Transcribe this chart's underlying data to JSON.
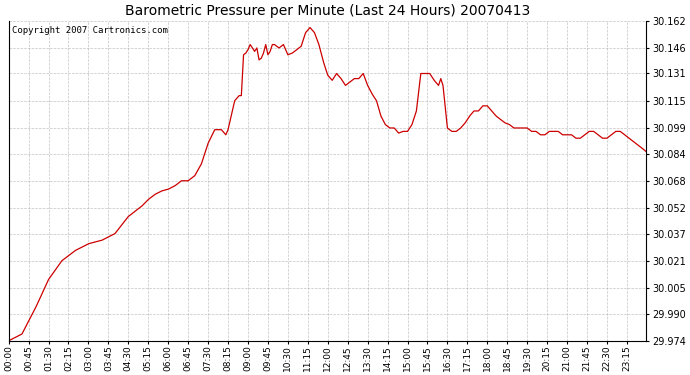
{
  "title": "Barometric Pressure per Minute (Last 24 Hours) 20070413",
  "copyright": "Copyright 2007 Cartronics.com",
  "line_color": "#cc0000",
  "background_color": "#ffffff",
  "plot_bg_color": "#ffffff",
  "grid_color": "#aaaaaa",
  "yticks": [
    29.974,
    29.99,
    30.005,
    30.021,
    30.037,
    30.052,
    30.068,
    30.084,
    30.099,
    30.115,
    30.131,
    30.146,
    30.162
  ],
  "ymin": 29.974,
  "ymax": 30.162,
  "xtick_labels": [
    "00:00",
    "00:45",
    "01:30",
    "02:15",
    "03:00",
    "03:45",
    "04:30",
    "05:15",
    "06:00",
    "06:45",
    "07:30",
    "08:15",
    "09:00",
    "09:45",
    "10:30",
    "11:15",
    "12:00",
    "12:45",
    "13:30",
    "14:15",
    "15:00",
    "15:45",
    "16:30",
    "17:15",
    "18:00",
    "18:45",
    "19:30",
    "20:15",
    "21:00",
    "21:45",
    "22:30",
    "23:15"
  ],
  "num_points": 1440,
  "key_values": {
    "0": 29.974,
    "30": 29.978,
    "60": 29.993,
    "90": 30.01,
    "120": 30.021,
    "150": 30.027,
    "180": 30.031,
    "210": 30.033,
    "240": 30.037,
    "270": 30.047,
    "300": 30.053,
    "315": 30.057,
    "330": 30.06,
    "345": 30.062,
    "360": 30.063,
    "375": 30.065,
    "390": 30.068,
    "405": 30.068,
    "420": 30.071,
    "435": 30.078,
    "450": 30.09,
    "465": 30.098,
    "480": 30.098,
    "490": 30.095,
    "495": 30.098,
    "510": 30.115,
    "520": 30.118,
    "525": 30.118,
    "530": 30.142,
    "535": 30.143,
    "540": 30.145,
    "545": 30.148,
    "550": 30.146,
    "555": 30.144,
    "560": 30.146,
    "565": 30.139,
    "570": 30.14,
    "575": 30.143,
    "580": 30.148,
    "585": 30.142,
    "590": 30.144,
    "595": 30.148,
    "600": 30.148,
    "610": 30.146,
    "620": 30.148,
    "630": 30.142,
    "640": 30.143,
    "650": 30.145,
    "660": 30.147,
    "670": 30.155,
    "680": 30.158,
    "690": 30.155,
    "700": 30.148,
    "710": 30.138,
    "720": 30.13,
    "730": 30.127,
    "740": 30.131,
    "750": 30.128,
    "760": 30.124,
    "770": 30.126,
    "780": 30.128,
    "790": 30.128,
    "800": 30.131,
    "810": 30.124,
    "820": 30.119,
    "830": 30.115,
    "840": 30.106,
    "850": 30.101,
    "860": 30.099,
    "870": 30.099,
    "880": 30.096,
    "890": 30.097,
    "900": 30.097,
    "910": 30.101,
    "920": 30.109,
    "930": 30.131,
    "940": 30.131,
    "950": 30.131,
    "960": 30.127,
    "970": 30.124,
    "975": 30.128,
    "980": 30.124,
    "990": 30.099,
    "1000": 30.097,
    "1010": 30.097,
    "1020": 30.099,
    "1030": 30.102,
    "1040": 30.106,
    "1050": 30.109,
    "1060": 30.109,
    "1070": 30.112,
    "1080": 30.112,
    "1090": 30.109,
    "1100": 30.106,
    "1110": 30.104,
    "1120": 30.102,
    "1130": 30.101,
    "1140": 30.099,
    "1150": 30.099,
    "1160": 30.099,
    "1170": 30.099,
    "1180": 30.097,
    "1190": 30.097,
    "1200": 30.095,
    "1210": 30.095,
    "1220": 30.097,
    "1230": 30.097,
    "1240": 30.097,
    "1250": 30.095,
    "1260": 30.095,
    "1270": 30.095,
    "1280": 30.093,
    "1290": 30.093,
    "1300": 30.095,
    "1310": 30.097,
    "1320": 30.097,
    "1330": 30.095,
    "1340": 30.093,
    "1350": 30.093,
    "1360": 30.095,
    "1370": 30.097,
    "1380": 30.097,
    "1390": 30.095,
    "1400": 30.093,
    "1410": 30.091,
    "1420": 30.089,
    "1430": 30.087,
    "1439": 30.085
  }
}
